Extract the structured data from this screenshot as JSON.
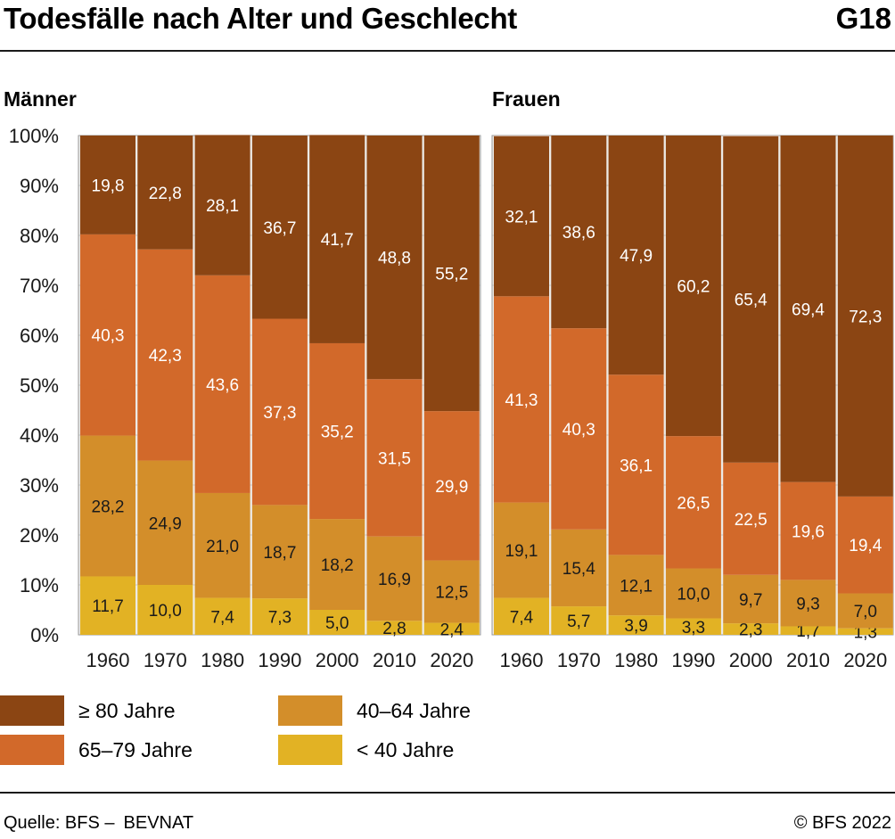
{
  "header": {
    "title": "Todesfälle nach Alter und Geschlecht",
    "code": "G18"
  },
  "footer": {
    "source_label": "Quelle: BFS –",
    "source_name": "BEVNAT",
    "copyright": "© BFS 2022"
  },
  "colors": {
    "age_80_plus": "#8B4513",
    "age_65_79": "#D2692A",
    "age_40_64": "#D38E2A",
    "age_under_40": "#E2B224",
    "panel_bg": "#ECEAE6",
    "grid": "#C8C8C8"
  },
  "chart_data": [
    {
      "type": "bar",
      "stacked": true,
      "title": "Männer",
      "categories": [
        "1960",
        "1970",
        "1980",
        "1990",
        "2000",
        "2010",
        "2020"
      ],
      "ylim": [
        0,
        100
      ],
      "yticks": [
        "0%",
        "10%",
        "20%",
        "30%",
        "40%",
        "50%",
        "60%",
        "70%",
        "80%",
        "90%",
        "100%"
      ],
      "series": [
        {
          "name": "< 40 Jahre",
          "color_key": "age_under_40",
          "values": [
            11.7,
            10.0,
            7.4,
            7.3,
            5.0,
            2.8,
            2.4
          ],
          "labels": [
            "11,7",
            "10,0",
            "7,4",
            "7,3",
            "5,0",
            "2,8",
            "2,4"
          ]
        },
        {
          "name": "40–64 Jahre",
          "color_key": "age_40_64",
          "values": [
            28.2,
            24.9,
            21.0,
            18.7,
            18.2,
            16.9,
            12.5
          ],
          "labels": [
            "28,2",
            "24,9",
            "21,0",
            "18,7",
            "18,2",
            "16,9",
            "12,5"
          ]
        },
        {
          "name": "65–79 Jahre",
          "color_key": "age_65_79",
          "values": [
            40.3,
            42.3,
            43.6,
            37.3,
            35.2,
            31.5,
            29.9
          ],
          "labels": [
            "40,3",
            "42,3",
            "43,6",
            "37,3",
            "35,2",
            "31,5",
            "29,9"
          ]
        },
        {
          "name": "≥ 80 Jahre",
          "color_key": "age_80_plus",
          "values": [
            19.8,
            22.8,
            28.1,
            36.7,
            41.7,
            48.8,
            55.2
          ],
          "labels": [
            "19,8",
            "22,8",
            "28,1",
            "36,7",
            "41,7",
            "48,8",
            "55,2"
          ]
        }
      ]
    },
    {
      "type": "bar",
      "stacked": true,
      "title": "Frauen",
      "categories": [
        "1960",
        "1970",
        "1980",
        "1990",
        "2000",
        "2010",
        "2020"
      ],
      "ylim": [
        0,
        100
      ],
      "series": [
        {
          "name": "< 40 Jahre",
          "color_key": "age_under_40",
          "values": [
            7.4,
            5.7,
            3.9,
            3.3,
            2.3,
            1.7,
            1.3
          ],
          "labels": [
            "7,4",
            "5,7",
            "3,9",
            "3,3",
            "2,3",
            "1,7",
            "1,3"
          ]
        },
        {
          "name": "40–64 Jahre",
          "color_key": "age_40_64",
          "values": [
            19.1,
            15.4,
            12.1,
            10.0,
            9.7,
            9.3,
            7.0
          ],
          "labels": [
            "19,1",
            "15,4",
            "12,1",
            "10,0",
            "9,7",
            "9,3",
            "7,0"
          ]
        },
        {
          "name": "65–79 Jahre",
          "color_key": "age_65_79",
          "values": [
            41.3,
            40.3,
            36.1,
            26.5,
            22.5,
            19.6,
            19.4
          ],
          "labels": [
            "41,3",
            "40,3",
            "36,1",
            "26,5",
            "22,5",
            "19,6",
            "19,4"
          ]
        },
        {
          "name": "≥ 80 Jahre",
          "color_key": "age_80_plus",
          "values": [
            32.1,
            38.6,
            47.9,
            60.2,
            65.4,
            69.4,
            72.3
          ],
          "labels": [
            "32,1",
            "38,6",
            "47,9",
            "60,2",
            "65,4",
            "69,4",
            "72,3"
          ]
        }
      ]
    }
  ],
  "legend": [
    {
      "label": "≥ 80 Jahre",
      "color_key": "age_80_plus"
    },
    {
      "label": "40–64 Jahre",
      "color_key": "age_40_64"
    },
    {
      "label": "65–79 Jahre",
      "color_key": "age_65_79"
    },
    {
      "label": "< 40 Jahre",
      "color_key": "age_under_40"
    }
  ]
}
